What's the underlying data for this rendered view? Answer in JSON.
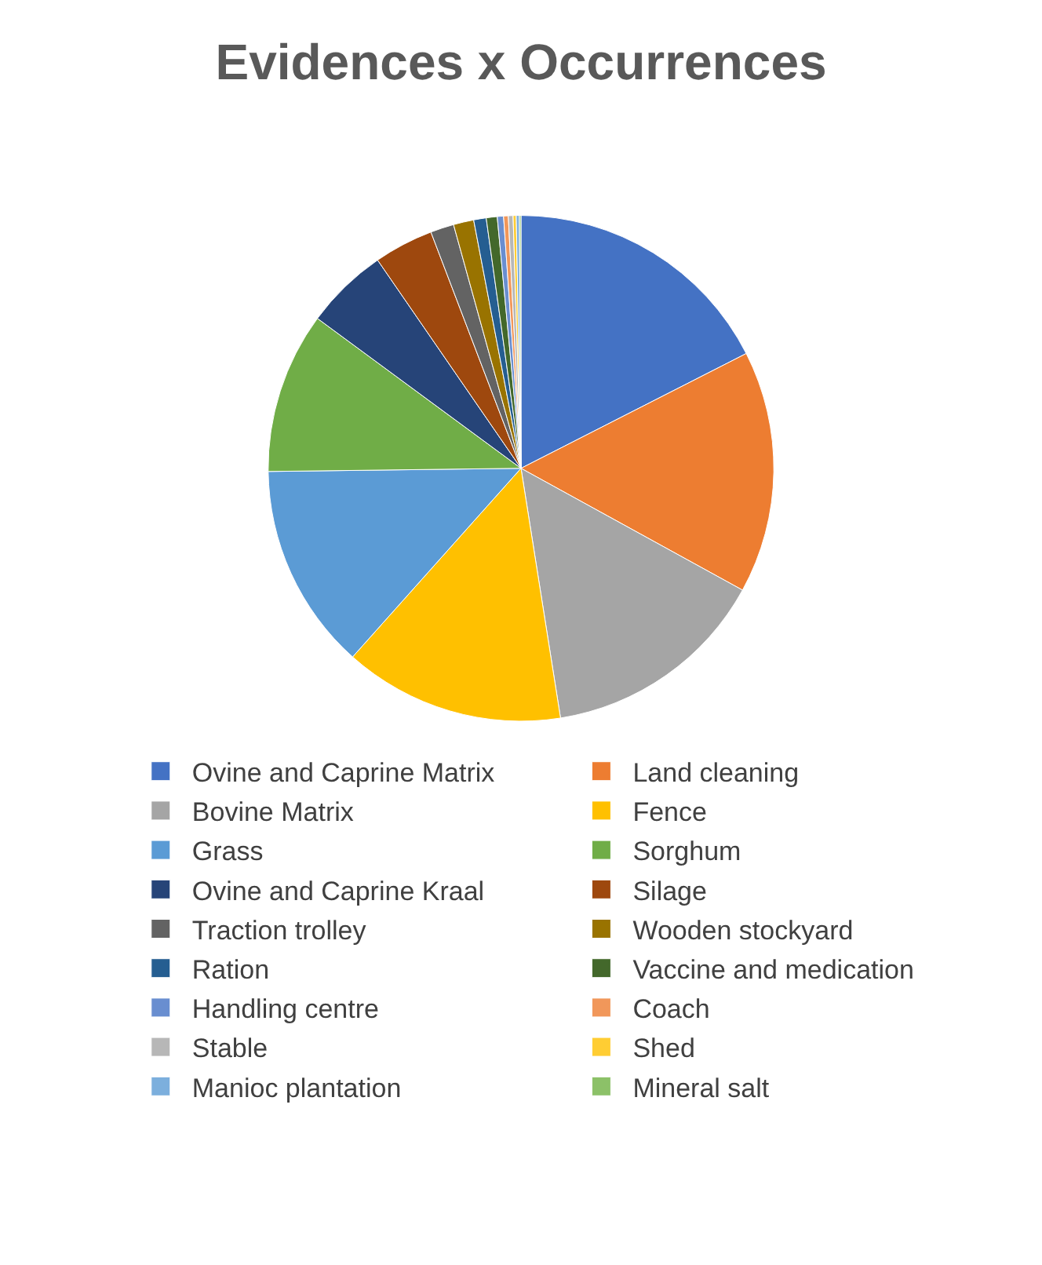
{
  "chart_data": {
    "type": "pie",
    "title": "Evidences x Occurrences",
    "categories": [
      "Ovine and Caprine Matrix",
      "Land cleaning",
      "Bovine Matrix",
      "Fence",
      "Grass",
      "Sorghum",
      "Ovine and Caprine Kraal",
      "Silage",
      "Traction trolley",
      "Wooden stockyard",
      "Ration",
      "Vaccine and medication",
      "Handling centre",
      "Coach",
      "Stable",
      "Shed",
      "Manioc plantation",
      "Mineral salt"
    ],
    "values": [
      17.5,
      15.5,
      14.5,
      14.1,
      13.2,
      10.3,
      5.3,
      3.8,
      1.5,
      1.3,
      0.8,
      0.7,
      0.4,
      0.3,
      0.3,
      0.2,
      0.2,
      0.1
    ],
    "colors": [
      "#4472c4",
      "#ed7d31",
      "#a5a5a5",
      "#ffc000",
      "#5b9bd5",
      "#70ad47",
      "#264478",
      "#9e480e",
      "#636363",
      "#997300",
      "#255e91",
      "#43682b",
      "#698ed0",
      "#f1975a",
      "#b7b7b7",
      "#ffcd33",
      "#7cafdd",
      "#8cc168"
    ],
    "legend": "bottom"
  }
}
